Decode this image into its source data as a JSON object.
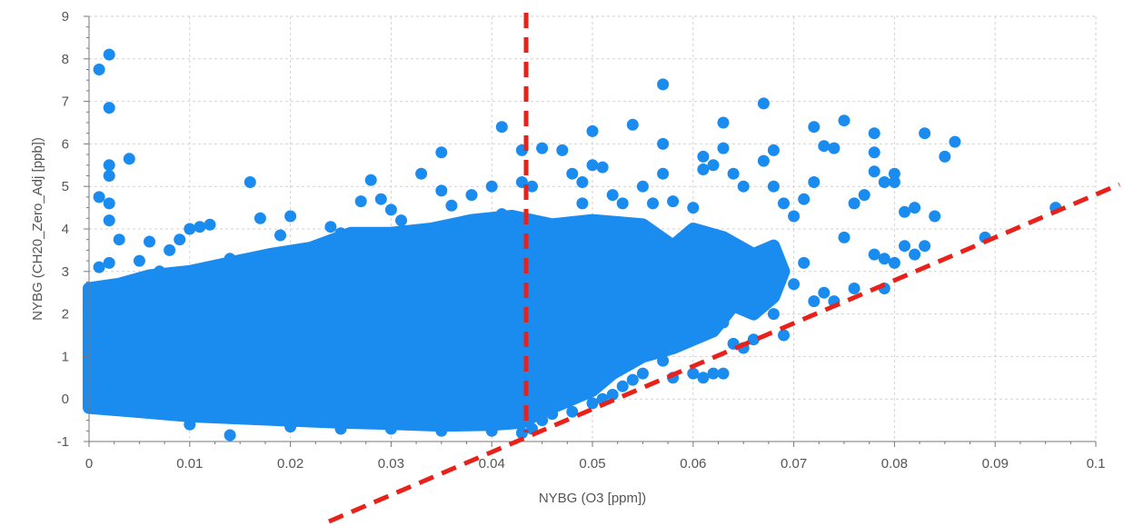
{
  "chart_data": {
    "type": "scatter",
    "title": "",
    "xlabel": "NYBG (O3 [ppm])",
    "ylabel": "NYBG (CH20_Zero_Adj [ppb])",
    "xlim": [
      0,
      0.1
    ],
    "ylim": [
      -1,
      9
    ],
    "xticks": [
      "0",
      "0.01",
      "0.02",
      "0.03",
      "0.04",
      "0.05",
      "0.06",
      "0.07",
      "0.08",
      "0.09",
      "0.1"
    ],
    "yticks": [
      "-1",
      "0",
      "1",
      "2",
      "3",
      "4",
      "5",
      "6",
      "7",
      "8",
      "9"
    ],
    "grid": true,
    "series": [
      {
        "color": "#1a8cf0",
        "points": [
          [
            0.001,
            7.75
          ],
          [
            0.002,
            8.1
          ],
          [
            0.002,
            6.85
          ],
          [
            0.002,
            5.5
          ],
          [
            0.002,
            5.25
          ],
          [
            0.004,
            5.65
          ],
          [
            0.001,
            4.75
          ],
          [
            0.002,
            4.6
          ],
          [
            0.002,
            4.2
          ],
          [
            0.003,
            3.75
          ],
          [
            0.001,
            3.1
          ],
          [
            0.002,
            3.2
          ],
          [
            0.005,
            3.25
          ],
          [
            0.007,
            3.0
          ],
          [
            0.009,
            3.75
          ],
          [
            0.01,
            4.0
          ],
          [
            0.011,
            4.05
          ],
          [
            0.012,
            4.1
          ],
          [
            0.006,
            3.7
          ],
          [
            0.008,
            3.5
          ],
          [
            0.014,
            3.3
          ],
          [
            0.016,
            5.1
          ],
          [
            0.017,
            4.25
          ],
          [
            0.019,
            3.85
          ],
          [
            0.02,
            4.3
          ],
          [
            0.024,
            4.05
          ],
          [
            0.025,
            3.9
          ],
          [
            0.027,
            4.65
          ],
          [
            0.028,
            5.15
          ],
          [
            0.029,
            4.7
          ],
          [
            0.03,
            4.45
          ],
          [
            0.031,
            4.2
          ],
          [
            0.033,
            5.3
          ],
          [
            0.035,
            5.8
          ],
          [
            0.035,
            4.9
          ],
          [
            0.036,
            4.55
          ],
          [
            0.038,
            4.8
          ],
          [
            0.04,
            5.0
          ],
          [
            0.041,
            4.35
          ],
          [
            0.041,
            6.4
          ],
          [
            0.043,
            5.1
          ],
          [
            0.043,
            5.85
          ],
          [
            0.044,
            5.0
          ],
          [
            0.045,
            5.9
          ],
          [
            0.047,
            5.85
          ],
          [
            0.048,
            5.3
          ],
          [
            0.049,
            5.1
          ],
          [
            0.049,
            4.6
          ],
          [
            0.05,
            6.3
          ],
          [
            0.05,
            5.5
          ],
          [
            0.051,
            5.45
          ],
          [
            0.052,
            4.8
          ],
          [
            0.053,
            4.6
          ],
          [
            0.054,
            6.45
          ],
          [
            0.055,
            5.0
          ],
          [
            0.056,
            4.6
          ],
          [
            0.057,
            7.4
          ],
          [
            0.057,
            6.0
          ],
          [
            0.057,
            5.3
          ],
          [
            0.058,
            4.65
          ],
          [
            0.06,
            4.5
          ],
          [
            0.061,
            5.7
          ],
          [
            0.061,
            5.4
          ],
          [
            0.062,
            5.5
          ],
          [
            0.063,
            6.5
          ],
          [
            0.063,
            5.9
          ],
          [
            0.064,
            5.3
          ],
          [
            0.065,
            5.0
          ],
          [
            0.067,
            6.95
          ],
          [
            0.067,
            5.6
          ],
          [
            0.068,
            5.85
          ],
          [
            0.068,
            5.0
          ],
          [
            0.069,
            4.6
          ],
          [
            0.07,
            4.3
          ],
          [
            0.071,
            4.7
          ],
          [
            0.072,
            6.4
          ],
          [
            0.072,
            5.1
          ],
          [
            0.073,
            5.95
          ],
          [
            0.074,
            5.9
          ],
          [
            0.075,
            6.55
          ],
          [
            0.076,
            4.6
          ],
          [
            0.077,
            4.8
          ],
          [
            0.078,
            6.25
          ],
          [
            0.078,
            5.8
          ],
          [
            0.078,
            5.35
          ],
          [
            0.079,
            5.1
          ],
          [
            0.08,
            5.3
          ],
          [
            0.08,
            5.1
          ],
          [
            0.081,
            4.4
          ],
          [
            0.082,
            4.5
          ],
          [
            0.083,
            6.25
          ],
          [
            0.084,
            4.3
          ],
          [
            0.085,
            5.7
          ],
          [
            0.086,
            6.05
          ],
          [
            0.089,
            3.8
          ],
          [
            0.096,
            4.5
          ],
          [
            0.078,
            3.4
          ],
          [
            0.079,
            3.3
          ],
          [
            0.081,
            3.6
          ],
          [
            0.082,
            3.4
          ],
          [
            0.083,
            3.6
          ],
          [
            0.08,
            3.2
          ],
          [
            0.076,
            2.6
          ],
          [
            0.079,
            2.6
          ],
          [
            0.075,
            3.8
          ],
          [
            0.071,
            3.2
          ],
          [
            0.072,
            2.3
          ],
          [
            0.073,
            2.5
          ],
          [
            0.07,
            2.7
          ],
          [
            0.067,
            2.5
          ],
          [
            0.066,
            1.4
          ],
          [
            0.065,
            1.2
          ],
          [
            0.064,
            1.3
          ],
          [
            0.063,
            0.6
          ],
          [
            0.062,
            0.6
          ],
          [
            0.061,
            0.5
          ],
          [
            0.06,
            0.6
          ],
          [
            0.058,
            0.5
          ],
          [
            0.057,
            0.9
          ],
          [
            0.055,
            0.6
          ],
          [
            0.054,
            0.45
          ],
          [
            0.053,
            0.3
          ],
          [
            0.052,
            0.1
          ],
          [
            0.051,
            0.0
          ],
          [
            0.05,
            -0.1
          ],
          [
            0.048,
            -0.3
          ],
          [
            0.046,
            -0.35
          ],
          [
            0.045,
            -0.5
          ],
          [
            0.044,
            -0.7
          ],
          [
            0.043,
            -0.8
          ],
          [
            0.014,
            -0.85
          ],
          [
            0.01,
            -0.6
          ],
          [
            0.02,
            -0.65
          ],
          [
            0.025,
            -0.7
          ],
          [
            0.03,
            -0.7
          ],
          [
            0.035,
            -0.75
          ],
          [
            0.04,
            -0.75
          ],
          [
            0.005,
            -0.3
          ],
          [
            0.069,
            1.5
          ],
          [
            0.068,
            2.0
          ],
          [
            0.074,
            2.3
          ],
          [
            0.065,
            2.6
          ],
          [
            0.063,
            1.8
          ],
          [
            0.062,
            2.2
          ]
        ]
      }
    ]
  }
}
